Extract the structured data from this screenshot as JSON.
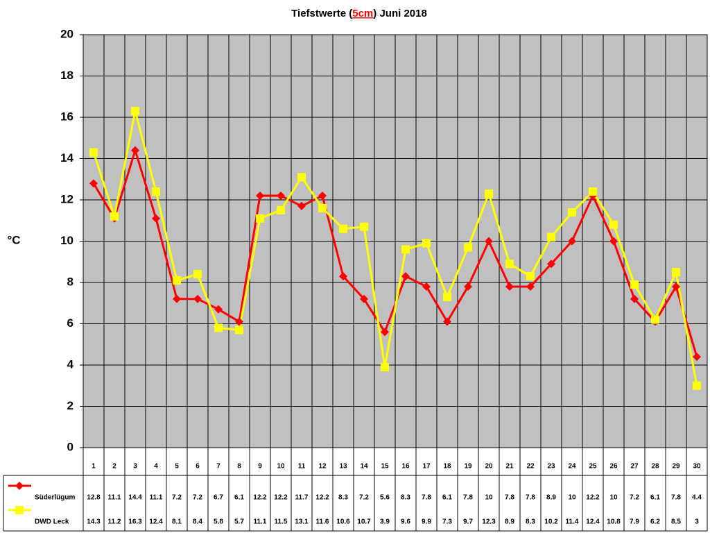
{
  "chart_data": {
    "type": "line",
    "title": {
      "before": "Tiefstwerte (",
      "highlight": "5cm",
      "after": ") Juni 2018"
    },
    "y_label": "°C",
    "categories": [
      "1",
      "2",
      "3",
      "4",
      "5",
      "6",
      "7",
      "8",
      "9",
      "10",
      "11",
      "12",
      "13",
      "14",
      "15",
      "16",
      "17",
      "18",
      "19",
      "20",
      "21",
      "22",
      "23",
      "24",
      "25",
      "26",
      "27",
      "28",
      "29",
      "30"
    ],
    "series": [
      {
        "name": "Süderlügum",
        "color": "#ff0000",
        "marker": "diamond",
        "values": [
          12.8,
          11.1,
          14.4,
          11.1,
          7.2,
          7.2,
          6.7,
          6.1,
          12.2,
          12.2,
          11.7,
          12.2,
          8.3,
          7.2,
          5.6,
          8.3,
          7.8,
          6.1,
          7.8,
          10,
          7.8,
          7.8,
          8.9,
          10,
          12.2,
          10,
          7.2,
          6.1,
          7.8,
          4.4
        ]
      },
      {
        "name": "DWD Leck",
        "color": "#ffff00",
        "marker": "square",
        "values": [
          14.3,
          11.2,
          16.3,
          12.4,
          8.1,
          8.4,
          5.8,
          5.7,
          11.1,
          11.5,
          13.1,
          11.6,
          10.6,
          10.7,
          3.9,
          9.6,
          9.9,
          7.3,
          9.7,
          12.3,
          8.9,
          8.3,
          10.2,
          11.4,
          12.4,
          10.8,
          7.9,
          6.2,
          8.5,
          3
        ]
      }
    ],
    "ylim": [
      0,
      20
    ],
    "yticks": [
      0,
      2,
      4,
      6,
      8,
      10,
      12,
      14,
      16,
      18,
      20
    ],
    "grid": true,
    "plot_background": "#c0c0c0"
  }
}
